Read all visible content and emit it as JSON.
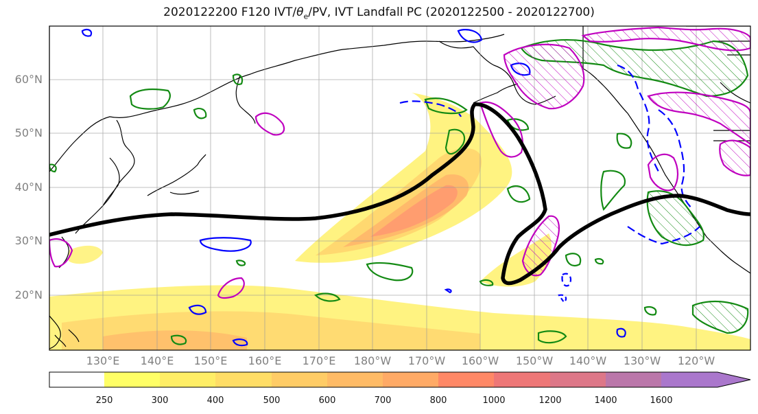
{
  "title": {
    "prefix": "2020122200 F120 IVT/",
    "theta_symbol": "θ",
    "theta_sub": "e",
    "suffix": "/PV, IVT Landfall PC (2020122500 - 2020122700)"
  },
  "map": {
    "lat_labels": [
      "60°N",
      "50°N",
      "40°N",
      "30°N",
      "20°N"
    ],
    "lon_labels": [
      "130°E",
      "140°E",
      "150°E",
      "160°E",
      "170°E",
      "180°W",
      "170°W",
      "160°W",
      "150°W",
      "140°W",
      "130°W",
      "120°W"
    ],
    "colors": {
      "land_outline": "#000000",
      "grid": "#999999",
      "thick_contour": "#000000",
      "green_contour": "#138a13",
      "blue_contour": "#0000ff",
      "magenta_contour": "#bf00bf"
    }
  },
  "colorbar": {
    "ticks": [
      "250",
      "300",
      "400",
      "500",
      "600",
      "700",
      "800",
      "1000",
      "1200",
      "1400",
      "1600"
    ],
    "colors": [
      "#ffff66",
      "#ffee66",
      "#ffdd66",
      "#ffcc66",
      "#ffbb66",
      "#ffaa66",
      "#ff8866",
      "#ee7777",
      "#dd7788",
      "#bb77aa",
      "#aa77cc"
    ]
  }
}
